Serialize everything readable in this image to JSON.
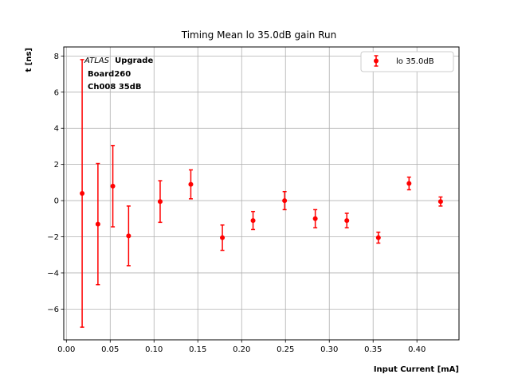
{
  "chart_data": {
    "type": "scatter",
    "title": "Timing Mean lo 35.0dB gain Run",
    "xlabel": "Input Current [mA]",
    "ylabel": "t [ns]",
    "xlim": [
      -0.003,
      0.448
    ],
    "ylim": [
      -7.7,
      8.5
    ],
    "xticks": [
      0.0,
      0.05,
      0.1,
      0.15,
      0.2,
      0.25,
      0.3,
      0.35,
      0.4
    ],
    "xtick_labels": [
      "0.00",
      "0.05",
      "0.10",
      "0.15",
      "0.20",
      "0.25",
      "0.30",
      "0.35",
      "0.40"
    ],
    "yticks": [
      -6,
      -4,
      -2,
      0,
      2,
      4,
      6,
      8
    ],
    "ytick_labels": [
      "−6",
      "−4",
      "−2",
      "0",
      "2",
      "4",
      "6",
      "8"
    ],
    "grid": true,
    "legend_position": "top-right",
    "annotation": {
      "italic": "ATLAS",
      "bold": "Upgrade",
      "line2": "Board260",
      "line3": "Ch008 35dB"
    },
    "series": [
      {
        "name": "lo 35.0dB",
        "color": "#ff0000",
        "x": [
          0.018,
          0.036,
          0.053,
          0.071,
          0.107,
          0.142,
          0.178,
          0.213,
          0.249,
          0.284,
          0.32,
          0.356,
          0.391,
          0.427
        ],
        "y": [
          0.4,
          -1.3,
          0.8,
          -1.95,
          -0.05,
          0.9,
          -2.05,
          -1.1,
          0.0,
          -1.0,
          -1.1,
          -2.05,
          0.95,
          -0.05
        ],
        "yerr_low": [
          7.4,
          3.35,
          2.25,
          1.65,
          1.15,
          0.8,
          0.7,
          0.5,
          0.5,
          0.5,
          0.4,
          0.3,
          0.35,
          0.25
        ],
        "yerr_high": [
          7.4,
          3.35,
          2.25,
          1.65,
          1.15,
          0.8,
          0.7,
          0.5,
          0.5,
          0.5,
          0.4,
          0.3,
          0.35,
          0.25
        ]
      }
    ]
  }
}
